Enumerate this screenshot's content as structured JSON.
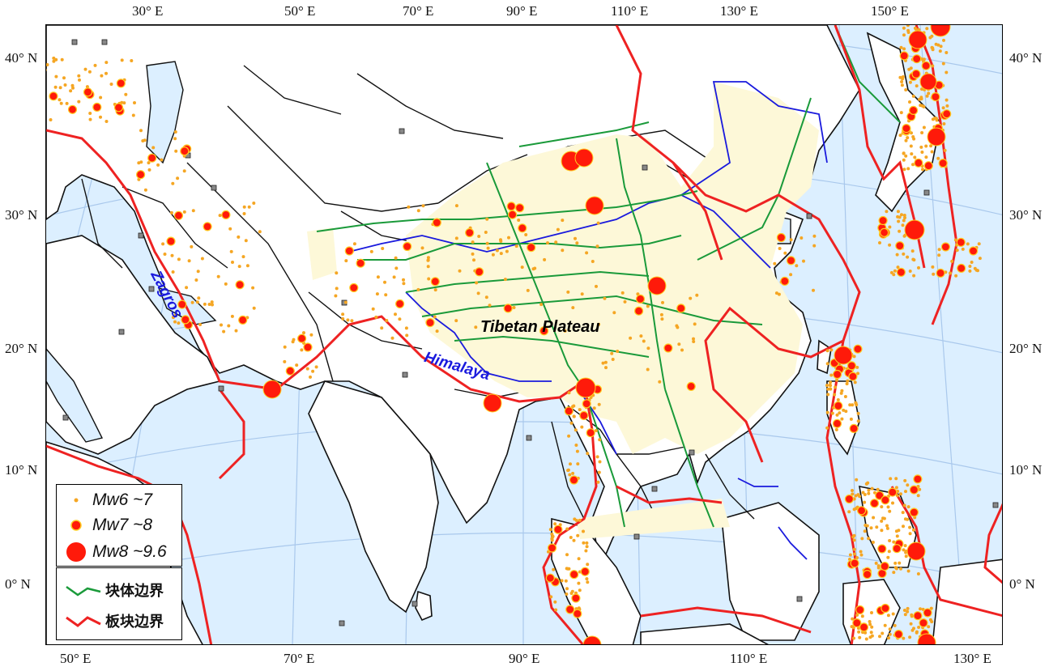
{
  "map": {
    "top_longitude_labels": [
      "30° E",
      "50° E",
      "70° E",
      "90° E",
      "110° E",
      "130° E",
      "150° E"
    ],
    "bottom_longitude_labels": [
      "50° E",
      "70° E",
      "90° E",
      "110° E",
      "130° E"
    ],
    "left_latitude_labels": [
      "40° N",
      "30° N",
      "20° N",
      "10° N",
      "0° N"
    ],
    "right_latitude_labels": [
      "40° N",
      "30° N",
      "20° N",
      "10° N",
      "0° N"
    ],
    "annotations": {
      "plateau": "Tibetan Plateau",
      "zagros": "Zagros",
      "himalaya": "Himalaya"
    },
    "colors": {
      "ocean": "#dcefff",
      "land": "#ffffff",
      "plateau": "#fdf8d8",
      "country_border": "#111111",
      "block_boundary": "#1a9a3a",
      "plate_boundary": "#ee2222",
      "river": "#1a1add",
      "graticule": "#a9c8ec",
      "quake_fill": "#ff1a0a",
      "quake_small": "#f5a623",
      "quake_ring": "#ffcc22"
    }
  },
  "legend": {
    "magnitude_entries": [
      "Mw6 ~7",
      "Mw7 ~8",
      "Mw8 ~9.6"
    ],
    "boundary_entries": [
      "块体边界",
      "板块边界"
    ]
  }
}
